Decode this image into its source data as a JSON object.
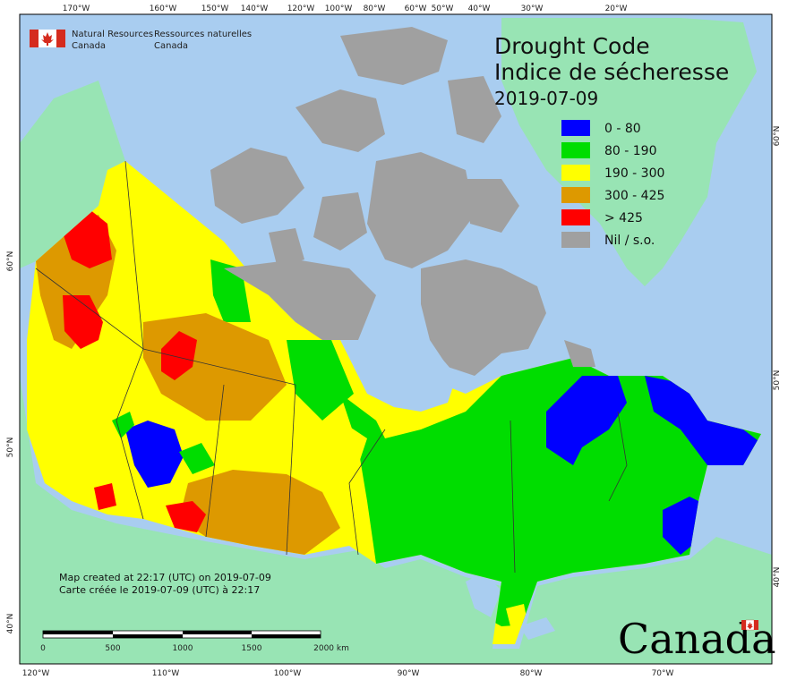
{
  "title": {
    "en": "Drought Code",
    "fr": "Indice de sécheresse",
    "date": "2019-07-09"
  },
  "agency": {
    "en_line1": "Natural Resources",
    "en_line2": "Canada",
    "fr_line1": "Ressources naturelles",
    "fr_line2": "Canada"
  },
  "legend": [
    {
      "label": "0 - 80",
      "color": "#0000ff"
    },
    {
      "label": "80 - 190",
      "color": "#00dd00"
    },
    {
      "label": "190 - 300",
      "color": "#ffff00"
    },
    {
      "label": "300 - 425",
      "color": "#dd9900"
    },
    {
      "label": "> 425",
      "color": "#ff0000"
    },
    {
      "label": "Nil / s.o.",
      "color": "#a0a0a0"
    }
  ],
  "created_note": {
    "en": "Map created at 22:17 (UTC) on 2019-07-09",
    "fr": "Carte créée le 2019-07-09 (UTC) à 22:17"
  },
  "scale_bar": {
    "labels": [
      "0",
      "500",
      "1000",
      "1500",
      "2000  km"
    ]
  },
  "top_ticks": [
    "170°W",
    "160°W",
    "150°W",
    "140°W",
    "120°W",
    "100°W",
    "80°W",
    "60°W",
    "50°W",
    "40°W",
    "30°W",
    "20°W"
  ],
  "bottom_ticks": [
    "120°W",
    "110°W",
    "100°W",
    "90°W",
    "80°W",
    "70°W"
  ],
  "left_ticks": [
    "60°N",
    "50°N",
    "40°N"
  ],
  "right_ticks": [
    "60°N",
    "50°N",
    "40°N"
  ],
  "wordmark": "Canada",
  "colors": {
    "ocean": "#a9cdf0",
    "land_outside": "#98e4b4",
    "nil": "#a0a0a0"
  }
}
